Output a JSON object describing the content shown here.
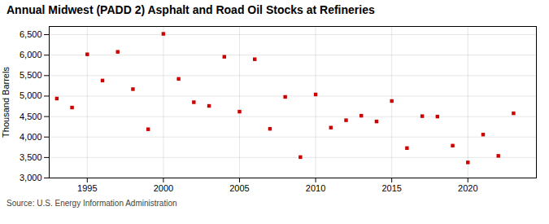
{
  "chart_data": {
    "type": "scatter",
    "title": "Annual Midwest (PADD 2) Asphalt and Road Oil Stocks at Refineries",
    "ylabel": "Thousand Barrels",
    "source": "Source: U.S. Energy Information Administration",
    "x": [
      1993,
      1994,
      1995,
      1996,
      1997,
      1998,
      1999,
      2000,
      2001,
      2002,
      2003,
      2004,
      2005,
      2006,
      2007,
      2008,
      2009,
      2010,
      2011,
      2012,
      2013,
      2014,
      2015,
      2016,
      2017,
      2018,
      2019,
      2020,
      2021,
      2022,
      2023
    ],
    "values": [
      4940,
      4720,
      6020,
      5380,
      6080,
      5170,
      4190,
      6520,
      5420,
      4850,
      4760,
      5960,
      4620,
      5900,
      4200,
      4980,
      3510,
      5040,
      4230,
      4410,
      4520,
      4380,
      4880,
      3730,
      4510,
      4500,
      3790,
      3380,
      4060,
      3540,
      4580
    ],
    "color": "#cc0000",
    "marker": "square",
    "xlim": [
      1992.5,
      2024.5
    ],
    "xticks": [
      1995,
      2000,
      2005,
      2010,
      2015,
      2020
    ],
    "ylim": [
      3000,
      6700
    ],
    "yticks": [
      {
        "value": 3000,
        "label": "3,000"
      },
      {
        "value": 3500,
        "label": "3,500"
      },
      {
        "value": 4000,
        "label": "4,000"
      },
      {
        "value": 4500,
        "label": "4,500"
      },
      {
        "value": 5000,
        "label": "5,000"
      },
      {
        "value": 5500,
        "label": "5,500"
      },
      {
        "value": 6000,
        "label": "6,000"
      },
      {
        "value": 6500,
        "label": "6,500"
      }
    ],
    "grid": true
  }
}
